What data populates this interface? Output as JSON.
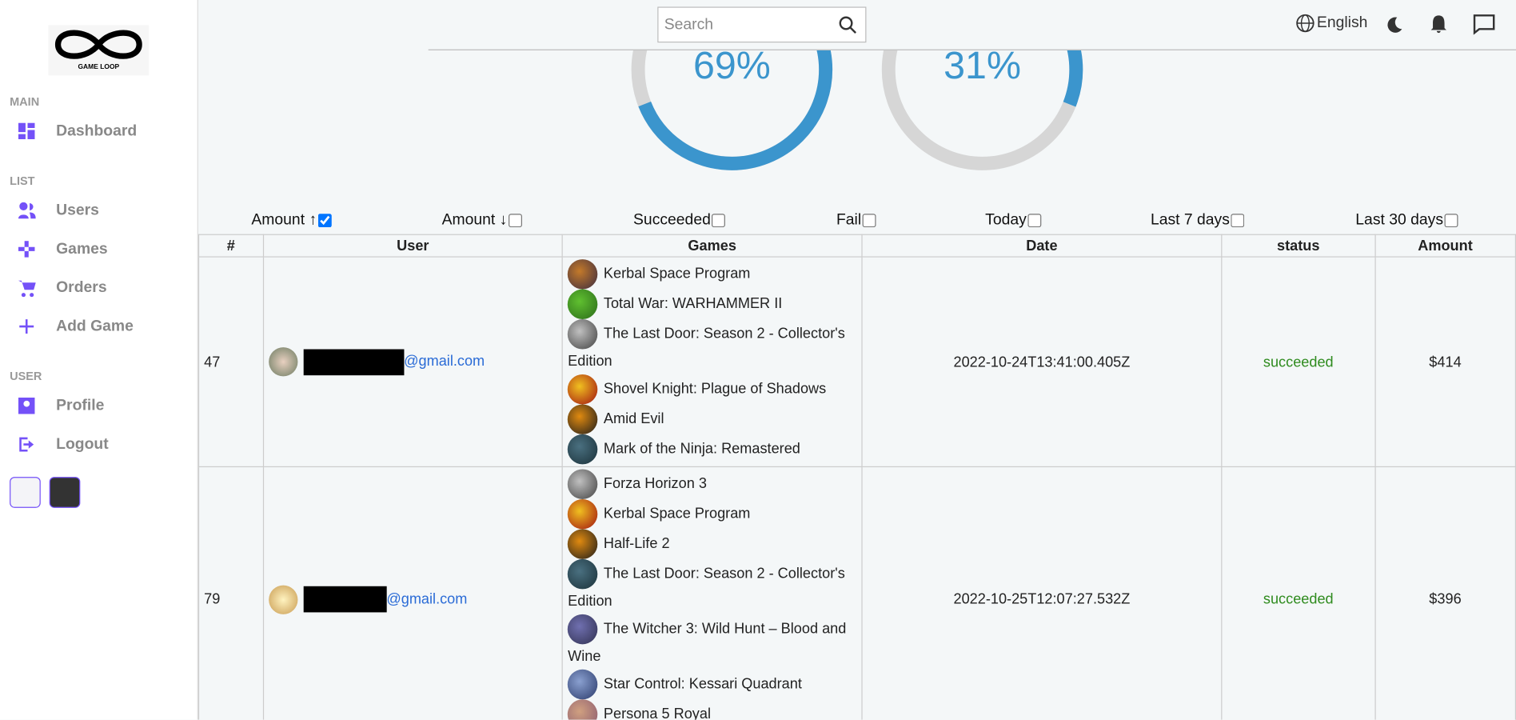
{
  "sidebar": {
    "logo_text": "GAME LOOP",
    "sections": [
      {
        "title": "MAIN",
        "items": [
          "Dashboard"
        ]
      },
      {
        "title": "LIST",
        "items": [
          "Users",
          "Games",
          "Orders",
          "Add Game"
        ]
      },
      {
        "title": "USER",
        "items": [
          "Profile",
          "Logout"
        ]
      }
    ]
  },
  "header": {
    "search_placeholder": "Search",
    "language": "English"
  },
  "progress": [
    {
      "value": 69,
      "label": "69%"
    },
    {
      "value": 31,
      "label": "31%"
    }
  ],
  "filters": [
    {
      "label": "Amount ↑",
      "checked": true
    },
    {
      "label": "Amount ↓",
      "checked": false
    },
    {
      "label": "Succeeded",
      "checked": false
    },
    {
      "label": "Fail",
      "checked": false
    },
    {
      "label": "Today",
      "checked": false
    },
    {
      "label": "Last 7 days",
      "checked": false
    },
    {
      "label": "Last 30 days",
      "checked": false
    }
  ],
  "table": {
    "columns": [
      "#",
      "User",
      "Games",
      "Date",
      "status",
      "Amount"
    ],
    "rows": [
      {
        "id": "47",
        "email": "@gmail.com",
        "games": [
          "Kerbal Space Program",
          "Total War: WARHAMMER II",
          "The Last Door: Season 2 - Collector's Edition",
          "Shovel Knight: Plague of Shadows",
          "Amid Evil",
          "Mark of the Ninja: Remastered"
        ],
        "date": "2022-10-24T13:41:00.405Z",
        "status": "succeeded",
        "amount": "$414"
      },
      {
        "id": "79",
        "email": "@gmail.com",
        "games": [
          "Forza Horizon 3",
          "Kerbal Space Program",
          "Half-Life 2",
          "The Last Door: Season 2 - Collector's Edition",
          "The Witcher 3: Wild Hunt – Blood and Wine",
          "Star Control: Kessari Quadrant",
          "Persona 5 Royal"
        ],
        "date": "2022-10-25T12:07:27.532Z",
        "status": "succeeded",
        "amount": "$396"
      }
    ]
  }
}
